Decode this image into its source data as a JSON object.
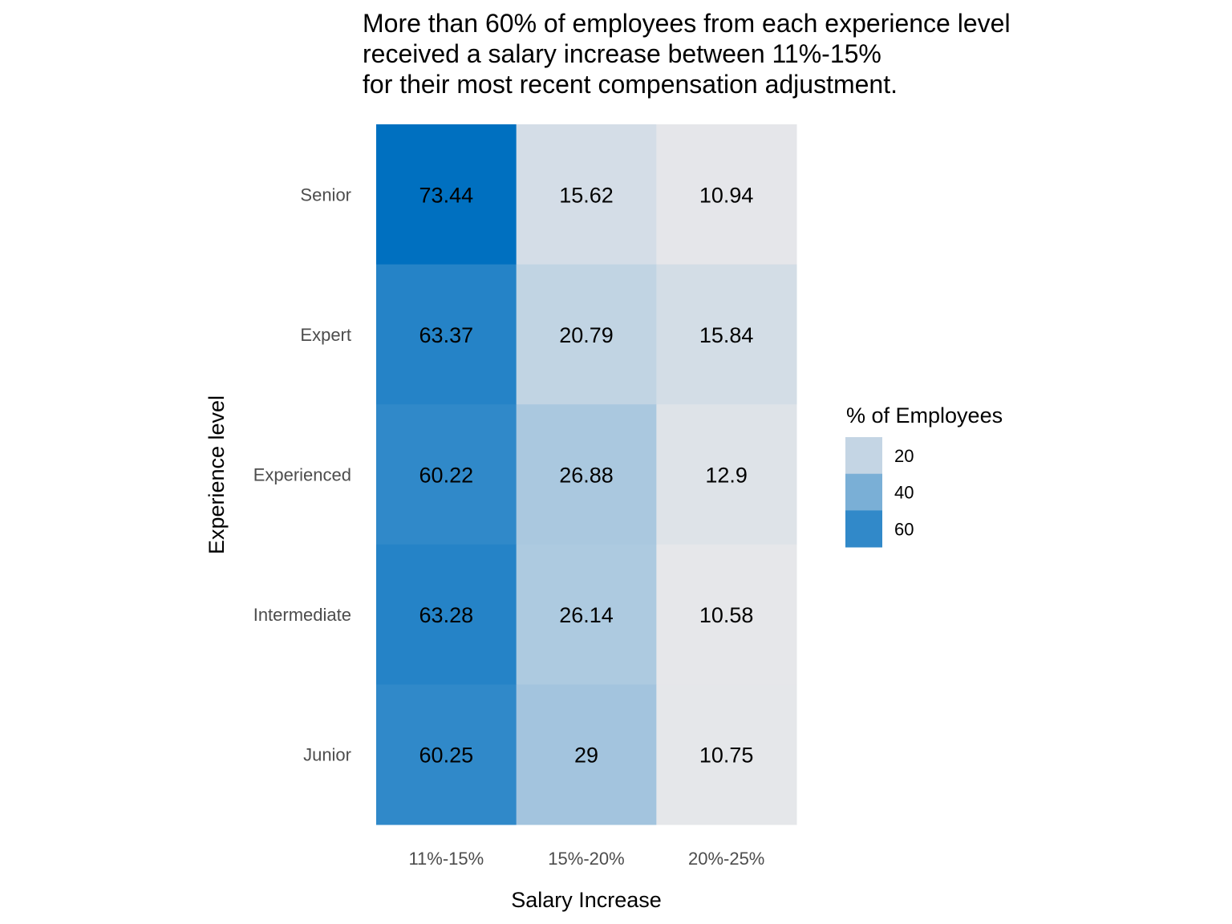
{
  "chart_data": {
    "type": "heatmap",
    "title_lines": [
      "More than 60% of employees from each experience level",
      "received a salary increase between 11%-15%",
      "for their most recent compensation adjustment."
    ],
    "xlabel": "Salary Increase",
    "ylabel": "Experience level",
    "x_categories": [
      "11%-15%",
      "15%-20%",
      "20%-25%"
    ],
    "y_categories": [
      "Senior",
      "Expert",
      "Experienced",
      "Intermediate",
      "Junior"
    ],
    "values": [
      [
        73.44,
        15.62,
        10.94
      ],
      [
        63.37,
        20.79,
        15.84
      ],
      [
        60.22,
        26.88,
        12.9
      ],
      [
        63.28,
        26.14,
        10.58
      ],
      [
        60.25,
        29,
        10.75
      ]
    ],
    "value_labels": [
      [
        "73.44",
        "15.62",
        "10.94"
      ],
      [
        "63.37",
        "20.79",
        "15.84"
      ],
      [
        "60.22",
        "26.88",
        "12.9"
      ],
      [
        "63.28",
        "26.14",
        "10.58"
      ],
      [
        "60.25",
        "29",
        "10.75"
      ]
    ],
    "legend": {
      "title": "% of Employees",
      "position": "right",
      "breaks": [
        20,
        40,
        60
      ],
      "break_labels": [
        "20",
        "40",
        "60"
      ]
    },
    "color_scale": {
      "low": "#E6E7EA",
      "high": "#0070C0",
      "domain": [
        10.58,
        73.44
      ]
    },
    "grid": false
  }
}
